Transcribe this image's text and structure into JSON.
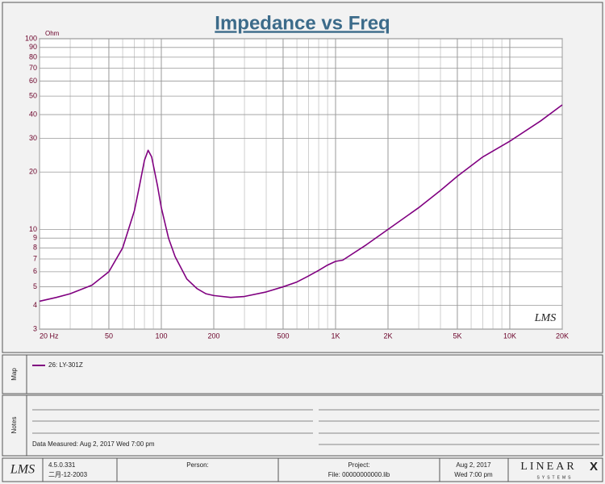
{
  "chart_data": {
    "type": "line",
    "title": "Impedance vs Freq",
    "y_label": "Ohm",
    "x_scale": "log",
    "y_scale": "log",
    "grid": true,
    "xlim": [
      20,
      20000
    ],
    "ylim": [
      3,
      100
    ],
    "xticks": [
      {
        "value": 20,
        "label": "20 Hz"
      },
      50,
      100,
      200,
      500,
      {
        "value": 1000,
        "label": "1K"
      },
      {
        "value": 2000,
        "label": "2K"
      },
      {
        "value": 5000,
        "label": "5K"
      },
      {
        "value": 10000,
        "label": "10K"
      },
      {
        "value": 20000,
        "label": "20K"
      }
    ],
    "x_minor_grid": [
      30,
      40,
      60,
      70,
      80,
      90,
      300,
      400,
      600,
      700,
      800,
      900,
      3000,
      4000,
      6000,
      7000,
      8000,
      9000
    ],
    "yticks": [
      3,
      4,
      5,
      6,
      7,
      8,
      9,
      10,
      20,
      30,
      40,
      50,
      60,
      70,
      80,
      90,
      100
    ],
    "x": [
      20,
      25,
      30,
      40,
      50,
      60,
      70,
      75,
      80,
      84,
      88,
      95,
      100,
      110,
      120,
      140,
      160,
      180,
      200,
      250,
      300,
      400,
      500,
      600,
      700,
      800,
      900,
      1000,
      1100,
      1500,
      2000,
      3000,
      4000,
      5000,
      7000,
      10000,
      15000,
      20000
    ],
    "series": [
      {
        "name": "26: LY-301Z",
        "color": "#800080",
        "values": [
          4.2,
          4.4,
          4.6,
          5.1,
          6.0,
          8.0,
          12.5,
          17,
          23,
          26,
          24,
          17,
          13,
          9,
          7.2,
          5.5,
          4.9,
          4.6,
          4.5,
          4.4,
          4.45,
          4.7,
          5.0,
          5.3,
          5.7,
          6.1,
          6.5,
          6.8,
          6.9,
          8.3,
          10,
          13,
          16,
          19,
          24,
          29,
          37,
          45
        ]
      }
    ]
  },
  "watermark": "LMS",
  "panels": {
    "map": "Map",
    "notes": "Notes"
  },
  "notes": {
    "measured": "Data Measured: Aug  2, 2017  Wed  7:00 pm"
  },
  "footer": {
    "logo": "LMS",
    "version": "4.5.0.331",
    "build_date": "二月-12-2003",
    "person": "Person:",
    "project": "Project:",
    "file": "File: 00000000000.lib",
    "date": "Aug  2, 2017",
    "time": "Wed  7:00 pm",
    "brand": "LINEAR",
    "brand_mark": "X",
    "brand_sub": "SYSTEMS"
  }
}
